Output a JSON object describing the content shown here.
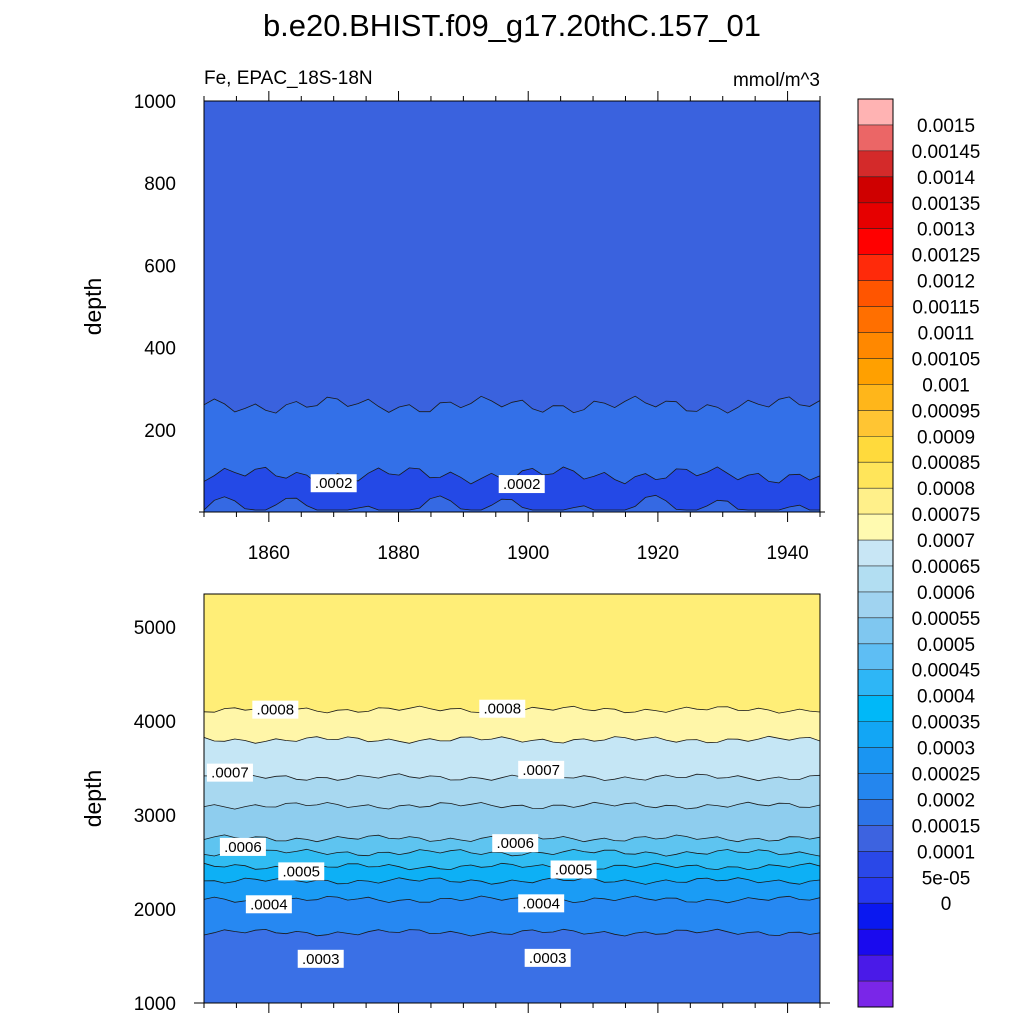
{
  "title": "b.e20.BHIST.f09_g17.20thC.157_01",
  "variable_label": "Fe, EPAC_18S-18N",
  "units_label": "mmol/m^3",
  "chart_data": [
    {
      "type": "contour",
      "panel": "upper",
      "ylabel": "depth",
      "xlim": [
        1850,
        1945
      ],
      "ylim": [
        1000,
        0
      ],
      "xticks": [
        "1860",
        "1880",
        "1900",
        "1920",
        "1940"
      ],
      "yticks": [
        "200",
        "400",
        "600",
        "800",
        "1000"
      ],
      "contour_labels": [
        {
          "text": ".0002",
          "x": 1870,
          "y": 70
        },
        {
          "text": ".0002",
          "x": 1899,
          "y": 68
        }
      ],
      "bands": [
        {
          "min": 0.00015,
          "max": 0.0002,
          "top_depth": 0,
          "bottom_depth": 90,
          "color": "#2449E6"
        },
        {
          "min": 0.0002,
          "max": 0.00025,
          "top_depth": 90,
          "bottom_depth": 260,
          "color": "#3370E8"
        },
        {
          "min": 0.00015,
          "max": 0.0002,
          "top_depth": 260,
          "bottom_depth": 1000,
          "color": "#3A62DE"
        }
      ]
    },
    {
      "type": "contour",
      "panel": "lower",
      "ylabel": "depth",
      "xlim": [
        1850,
        1945
      ],
      "ylim": [
        5350,
        1000
      ],
      "yticks": [
        "1000",
        "2000",
        "3000",
        "4000",
        "5000"
      ],
      "contour_labels": [
        {
          "text": ".0003",
          "x": 1868,
          "y": 1470
        },
        {
          "text": ".0003",
          "x": 1903,
          "y": 1480
        },
        {
          "text": ".0004",
          "x": 1860,
          "y": 2050
        },
        {
          "text": ".0004",
          "x": 1902,
          "y": 2060
        },
        {
          "text": ".0005",
          "x": 1865,
          "y": 2400
        },
        {
          "text": ".0005",
          "x": 1907,
          "y": 2420
        },
        {
          "text": ".0006",
          "x": 1856,
          "y": 2660
        },
        {
          "text": ".0006",
          "x": 1898,
          "y": 2700
        },
        {
          "text": ".0007",
          "x": 1854,
          "y": 3450
        },
        {
          "text": ".0007",
          "x": 1902,
          "y": 3480
        },
        {
          "text": ".0008",
          "x": 1861,
          "y": 4120
        },
        {
          "text": ".0008",
          "x": 1896,
          "y": 4130
        }
      ],
      "bands": [
        {
          "min": 0.00025,
          "max": 0.0003,
          "top_depth": 1000,
          "bottom_depth": 1750,
          "color": "#3A70E6"
        },
        {
          "min": 0.0003,
          "max": 0.00035,
          "top_depth": 1750,
          "bottom_depth": 2100,
          "color": "#2688F2"
        },
        {
          "min": 0.00035,
          "max": 0.0004,
          "top_depth": 2100,
          "bottom_depth": 2300,
          "color": "#1A9CF5"
        },
        {
          "min": 0.0004,
          "max": 0.00045,
          "top_depth": 2300,
          "bottom_depth": 2450,
          "color": "#0DB0F5"
        },
        {
          "min": 0.00045,
          "max": 0.0005,
          "top_depth": 2450,
          "bottom_depth": 2600,
          "color": "#30BCF2"
        },
        {
          "min": 0.0005,
          "max": 0.00055,
          "top_depth": 2600,
          "bottom_depth": 2750,
          "color": "#5EC4F0"
        },
        {
          "min": 0.00055,
          "max": 0.0006,
          "top_depth": 2750,
          "bottom_depth": 3100,
          "color": "#8ECDEE"
        },
        {
          "min": 0.0006,
          "max": 0.00065,
          "top_depth": 3100,
          "bottom_depth": 3400,
          "color": "#A8D8F0"
        },
        {
          "min": 0.00065,
          "max": 0.0007,
          "top_depth": 3400,
          "bottom_depth": 3800,
          "color": "#C5E6F5"
        },
        {
          "min": 0.00075,
          "max": 0.0008,
          "top_depth": 3800,
          "bottom_depth": 4120,
          "color": "#FFF6A8"
        },
        {
          "min": 0.0008,
          "max": 0.00085,
          "top_depth": 4120,
          "bottom_depth": 5350,
          "color": "#FFEE77"
        }
      ]
    }
  ],
  "colorbar": {
    "colors": [
      "#FFB3B3",
      "#EB6666",
      "#D42A2A",
      "#CF0000",
      "#E60000",
      "#FF0000",
      "#FF2A0A",
      "#FF5500",
      "#FF6F00",
      "#FF8800",
      "#FFA000",
      "#FFB61A",
      "#FFC533",
      "#FFDA3C",
      "#FFE55A",
      "#FFF08A",
      "#FFFAB0",
      "#C8E6F5",
      "#B2DEF2",
      "#A0D3F0",
      "#7FC7F0",
      "#5EBEF4",
      "#2EB6F6",
      "#00B8F8",
      "#12A6F5",
      "#1A95F2",
      "#2486EE",
      "#2C74E8",
      "#3D63E0",
      "#2A48E8",
      "#2639F0",
      "#0A18F0",
      "#1A0AEE",
      "#4A1AE8",
      "#7A26E8"
    ],
    "labels": [
      "0.0015",
      "0.00145",
      "0.0014",
      "0.00135",
      "0.0013",
      "0.00125",
      "0.0012",
      "0.00115",
      "0.0011",
      "0.00105",
      "0.001",
      "0.00095",
      "0.0009",
      "0.00085",
      "0.0008",
      "0.00075",
      "0.0007",
      "0.00065",
      "0.0006",
      "0.00055",
      "0.0005",
      "0.00045",
      "0.0004",
      "0.00035",
      "0.0003",
      "0.00025",
      "0.0002",
      "0.00015",
      "0.0001",
      "5e-05",
      "0"
    ]
  }
}
